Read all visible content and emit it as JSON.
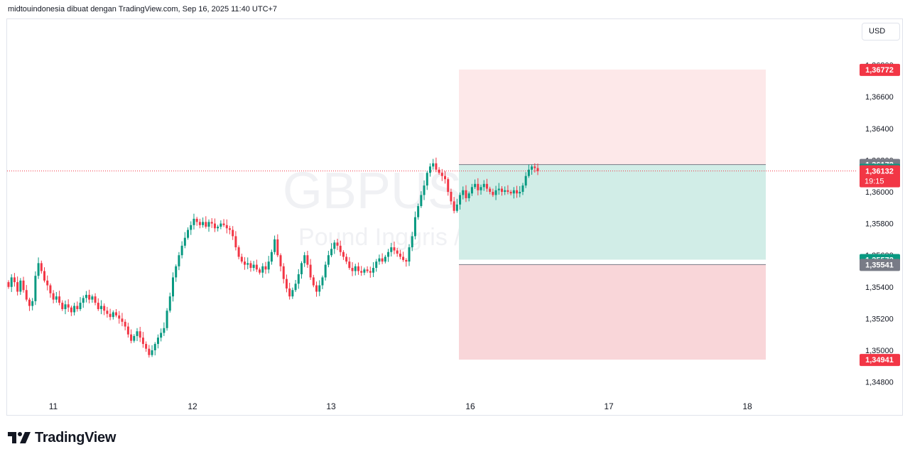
{
  "header": {
    "text": "midtouindonesia dibuat dengan TradingView.com, Sep 16, 2025 11:40 UTC+7"
  },
  "currency": {
    "label": "USD"
  },
  "watermark": {
    "symbol": "GBPUSD, 30",
    "name": "Pound Inggris / Dollar AS"
  },
  "brand": {
    "name": "TradingView"
  },
  "colors": {
    "up": "#089981",
    "down": "#f23645",
    "grid": "#f0f3fa",
    "text": "#131722",
    "target_zone": "#d1ede7",
    "stop_zone_top": "#fde8e9",
    "stop_zone_bottom": "#f9d6d9",
    "gray_label": "#787b86",
    "current_line": "#f23645"
  },
  "chart_data": {
    "type": "candlestick",
    "title": "GBPUSD, 30",
    "subtitle": "Pound Inggris / Dollar AS",
    "y_axis": {
      "min": 1.3475,
      "max": 1.369,
      "ticks": [
        "1,36800",
        "1,36600",
        "1,36400",
        "1,36200",
        "1,36000",
        "1,35800",
        "1,35600",
        "1,35400",
        "1,35200",
        "1,35000",
        "1,34800"
      ]
    },
    "x_axis": {
      "tick_labels": [
        "11",
        "12",
        "13",
        "16",
        "17",
        "18"
      ]
    },
    "grid": false,
    "current_price": {
      "value": 1.36132,
      "label": "1,36132",
      "countdown": "19:15"
    },
    "price_labels": [
      {
        "value": 1.36772,
        "label": "1,36772",
        "color": "#f23645"
      },
      {
        "value": 1.36172,
        "label": "1,36172",
        "color": "#787b86"
      },
      {
        "value": 1.36141,
        "label": "1,36141",
        "color": "#089981"
      },
      {
        "value": 1.35572,
        "label": "1,35572",
        "color": "#089981"
      },
      {
        "value": 1.35541,
        "label": "1,35541",
        "color": "#787b86"
      },
      {
        "value": 1.34941,
        "label": "1,34941",
        "color": "#f23645"
      }
    ],
    "position_tool": {
      "entry": 1.36141,
      "target": 1.35572,
      "entry_alt": 1.36172,
      "target_alt": 1.35541,
      "stop_top": 1.36772,
      "stop_bottom": 1.34941
    },
    "candles_close": [
      1.354,
      1.3546,
      1.3543,
      1.3537,
      1.3544,
      1.3538,
      1.3532,
      1.3528,
      1.3531,
      1.3547,
      1.3555,
      1.355,
      1.3544,
      1.3541,
      1.3536,
      1.3532,
      1.3534,
      1.353,
      1.3526,
      1.3529,
      1.3527,
      1.3524,
      1.3528,
      1.3526,
      1.353,
      1.3533,
      1.3535,
      1.3532,
      1.3534,
      1.353,
      1.3526,
      1.3528,
      1.3525,
      1.3523,
      1.3521,
      1.3524,
      1.3522,
      1.352,
      1.3518,
      1.3515,
      1.351,
      1.3506,
      1.3509,
      1.3512,
      1.3508,
      1.3504,
      1.3501,
      1.3497,
      1.35,
      1.3504,
      1.3508,
      1.3511,
      1.3514,
      1.3525,
      1.3534,
      1.3546,
      1.3553,
      1.356,
      1.3566,
      1.3571,
      1.3576,
      1.3579,
      1.3583,
      1.3581,
      1.3579,
      1.3581,
      1.3578,
      1.3581,
      1.358,
      1.3577,
      1.3578,
      1.358,
      1.3579,
      1.3577,
      1.3576,
      1.3572,
      1.3565,
      1.3559,
      1.3556,
      1.3554,
      1.3555,
      1.3552,
      1.3554,
      1.3551,
      1.3549,
      1.3553,
      1.3551,
      1.3556,
      1.3562,
      1.357,
      1.356,
      1.3553,
      1.3545,
      1.3539,
      1.3534,
      1.3538,
      1.3542,
      1.3548,
      1.3555,
      1.356,
      1.3554,
      1.3546,
      1.3541,
      1.3537,
      1.3541,
      1.3546,
      1.3554,
      1.356,
      1.3564,
      1.3568,
      1.3566,
      1.3562,
      1.3559,
      1.3556,
      1.3552,
      1.355,
      1.3553,
      1.355,
      1.3549,
      1.3551,
      1.355,
      1.3549,
      1.3552,
      1.3556,
      1.3558,
      1.3556,
      1.3559,
      1.3562,
      1.3565,
      1.3563,
      1.3561,
      1.3559,
      1.3557,
      1.3556,
      1.3565,
      1.3572,
      1.3584,
      1.3591,
      1.3598,
      1.3604,
      1.3612,
      1.3616,
      1.3618,
      1.3614,
      1.3612,
      1.361,
      1.3608,
      1.36,
      1.3594,
      1.3588,
      1.3592,
      1.3598,
      1.3601,
      1.3596,
      1.3599,
      1.3603,
      1.3605,
      1.3601,
      1.3603,
      1.3605,
      1.3602,
      1.36,
      1.3598,
      1.3601,
      1.3602,
      1.36,
      1.3601,
      1.36,
      1.3599,
      1.3601,
      1.3599,
      1.36,
      1.3604,
      1.361,
      1.3614,
      1.3616,
      1.3615,
      1.3613
    ]
  }
}
